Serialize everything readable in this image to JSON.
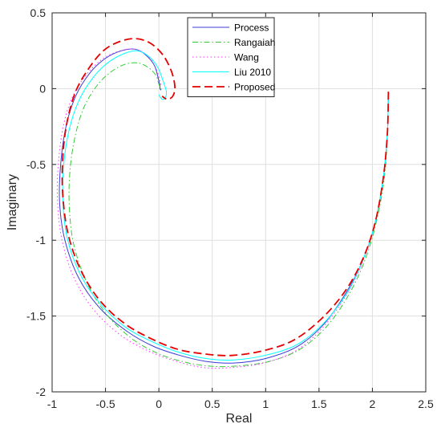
{
  "chart_data": {
    "type": "line",
    "xlabel": "Real",
    "ylabel": "Imaginary",
    "xlim": [
      -1,
      2.5
    ],
    "ylim": [
      -2,
      0.5
    ],
    "xticks": [
      -1,
      -0.5,
      0,
      0.5,
      1,
      1.5,
      2,
      2.5
    ],
    "yticks": [
      -2,
      -1.5,
      -1,
      -0.5,
      0,
      0.5
    ],
    "xtick_labels": [
      "-1",
      "-0.5",
      "0",
      "0.5",
      "1",
      "1.5",
      "2",
      "2.5"
    ],
    "ytick_labels": [
      "-2",
      "-1.5",
      "-1",
      "-0.5",
      "0",
      "0.5"
    ],
    "grid": true,
    "legend_position": "top-center",
    "series": [
      {
        "name": "Process",
        "color": "#3b3bd6",
        "dash": "solid",
        "x": [
          2.15,
          2.14,
          2.1,
          2.02,
          1.9,
          1.75,
          1.55,
          1.3,
          1.0,
          0.7,
          0.45,
          0.2,
          -0.05,
          -0.3,
          -0.55,
          -0.75,
          -0.88,
          -0.93,
          -0.92,
          -0.87,
          -0.78,
          -0.65,
          -0.5,
          -0.35,
          -0.22,
          -0.12,
          -0.04,
          0.0,
          0.01,
          0.01,
          0.02
        ],
        "y": [
          -0.02,
          -0.3,
          -0.6,
          -0.9,
          -1.15,
          -1.35,
          -1.55,
          -1.7,
          -1.78,
          -1.81,
          -1.8,
          -1.76,
          -1.7,
          -1.6,
          -1.45,
          -1.25,
          -1.0,
          -0.75,
          -0.5,
          -0.25,
          -0.05,
          0.1,
          0.2,
          0.25,
          0.26,
          0.22,
          0.15,
          0.05,
          0.02,
          0.0,
          -0.01
        ]
      },
      {
        "name": "Rangaiah",
        "color": "#33cc33",
        "dash": "dashdot",
        "x": [
          2.15,
          2.14,
          2.11,
          2.03,
          1.92,
          1.77,
          1.57,
          1.32,
          1.03,
          0.72,
          0.47,
          0.22,
          -0.03,
          -0.27,
          -0.5,
          -0.68,
          -0.8,
          -0.84,
          -0.83,
          -0.78,
          -0.7,
          -0.58,
          -0.45,
          -0.32,
          -0.2,
          -0.1,
          -0.03,
          0.0,
          0.02,
          0.03
        ],
        "y": [
          -0.02,
          -0.3,
          -0.6,
          -0.9,
          -1.15,
          -1.37,
          -1.57,
          -1.72,
          -1.8,
          -1.83,
          -1.83,
          -1.8,
          -1.74,
          -1.64,
          -1.48,
          -1.27,
          -1.02,
          -0.76,
          -0.52,
          -0.3,
          -0.12,
          0.02,
          0.11,
          0.16,
          0.17,
          0.14,
          0.09,
          0.03,
          0.0,
          -0.02
        ]
      },
      {
        "name": "Wang",
        "color": "#ff33ff",
        "dash": "dotted",
        "x": [
          2.15,
          2.14,
          2.1,
          2.02,
          1.9,
          1.74,
          1.53,
          1.28,
          0.98,
          0.67,
          0.42,
          0.17,
          -0.1,
          -0.37,
          -0.62,
          -0.8,
          -0.91,
          -0.95,
          -0.94,
          -0.89,
          -0.8,
          -0.67,
          -0.52,
          -0.36,
          -0.22,
          -0.11,
          -0.03,
          0.01,
          0.02
        ],
        "y": [
          -0.02,
          -0.3,
          -0.6,
          -0.9,
          -1.16,
          -1.38,
          -1.58,
          -1.73,
          -1.81,
          -1.84,
          -1.84,
          -1.8,
          -1.73,
          -1.62,
          -1.45,
          -1.24,
          -0.99,
          -0.73,
          -0.48,
          -0.23,
          -0.04,
          0.1,
          0.2,
          0.25,
          0.26,
          0.22,
          0.14,
          0.05,
          0.01
        ]
      },
      {
        "name": "Liu 2010",
        "color": "#00ffff",
        "dash": "solid",
        "x": [
          2.15,
          2.14,
          2.1,
          2.02,
          1.9,
          1.75,
          1.54,
          1.29,
          0.99,
          0.69,
          0.44,
          0.19,
          -0.06,
          -0.32,
          -0.56,
          -0.74,
          -0.86,
          -0.9,
          -0.89,
          -0.84,
          -0.75,
          -0.62,
          -0.48,
          -0.33,
          -0.2,
          -0.09,
          -0.01,
          0.04,
          0.07,
          0.06,
          0.03,
          0.0
        ],
        "y": [
          -0.02,
          -0.3,
          -0.6,
          -0.9,
          -1.15,
          -1.36,
          -1.55,
          -1.69,
          -1.76,
          -1.79,
          -1.78,
          -1.74,
          -1.67,
          -1.57,
          -1.41,
          -1.22,
          -0.98,
          -0.73,
          -0.49,
          -0.27,
          -0.08,
          0.07,
          0.17,
          0.23,
          0.25,
          0.21,
          0.14,
          0.05,
          -0.02,
          -0.06,
          -0.07,
          -0.04
        ]
      },
      {
        "name": "Proposed",
        "color": "#e60000",
        "dash": "dashed",
        "x": [
          2.15,
          2.14,
          2.1,
          2.02,
          1.9,
          1.74,
          1.52,
          1.26,
          0.97,
          0.68,
          0.43,
          0.18,
          -0.07,
          -0.32,
          -0.55,
          -0.73,
          -0.85,
          -0.9,
          -0.9,
          -0.86,
          -0.78,
          -0.66,
          -0.52,
          -0.37,
          -0.22,
          -0.08,
          0.04,
          0.12,
          0.15,
          0.13,
          0.08,
          0.03
        ],
        "y": [
          -0.02,
          -0.3,
          -0.6,
          -0.9,
          -1.14,
          -1.34,
          -1.52,
          -1.66,
          -1.73,
          -1.76,
          -1.75,
          -1.72,
          -1.65,
          -1.55,
          -1.4,
          -1.2,
          -0.96,
          -0.7,
          -0.45,
          -0.22,
          -0.02,
          0.13,
          0.25,
          0.31,
          0.33,
          0.3,
          0.22,
          0.11,
          0.01,
          -0.05,
          -0.07,
          -0.05
        ]
      }
    ]
  }
}
